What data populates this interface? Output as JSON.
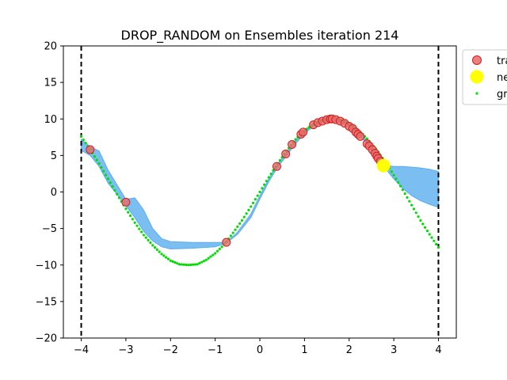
{
  "chart_data": {
    "type": "line",
    "title": "DROP_RANDOM on Ensembles iteration 214",
    "xlabel": "",
    "ylabel": "",
    "xlim": [
      -4.4,
      4.4
    ],
    "ylim": [
      -20,
      20
    ],
    "xticks": [
      -4,
      -3,
      -2,
      -1,
      0,
      1,
      2,
      3,
      4
    ],
    "yticks": [
      -20,
      -15,
      -10,
      -5,
      0,
      5,
      10,
      15,
      20
    ],
    "grid": false,
    "legend": {
      "placement": "upper-right outside",
      "entries": [
        {
          "label": "tra",
          "marker": "circle",
          "color": "#e86a6a"
        },
        {
          "label": "ne",
          "marker": "circle",
          "color": "#ffff00"
        },
        {
          "label": "gr",
          "marker": "dotted-line",
          "color": "#00dd00"
        }
      ]
    },
    "vlines": [
      -4,
      4
    ],
    "series": [
      {
        "name": "training",
        "kind": "scatter",
        "color": "#e86a6a",
        "edge_color": "#d02020",
        "x": [
          -3.8,
          -3.0,
          -0.75,
          0.38,
          0.58,
          0.72,
          0.92,
          0.97,
          1.2,
          1.3,
          1.4,
          1.5,
          1.58,
          1.62,
          1.7,
          1.8,
          1.9,
          2.0,
          2.08,
          2.15,
          2.2,
          2.25,
          2.4,
          2.45,
          2.52,
          2.58,
          2.62,
          2.65,
          2.7
        ],
        "y": [
          5.8,
          -1.4,
          -6.9,
          3.5,
          5.2,
          6.5,
          7.9,
          8.2,
          9.2,
          9.5,
          9.7,
          9.9,
          10.0,
          10.0,
          9.9,
          9.7,
          9.4,
          9.0,
          8.7,
          8.2,
          7.9,
          7.6,
          6.6,
          6.3,
          5.8,
          5.3,
          4.9,
          4.6,
          4.2
        ]
      },
      {
        "name": "new",
        "kind": "scatter",
        "color": "#ffff00",
        "x": [
          2.77
        ],
        "y": [
          3.6
        ]
      },
      {
        "name": "ground truth",
        "kind": "dotted-line",
        "color": "#00dd00",
        "x": [
          -4.0,
          -3.8,
          -3.6,
          -3.4,
          -3.2,
          -3.0,
          -2.8,
          -2.6,
          -2.4,
          -2.2,
          -2.0,
          -1.8,
          -1.6,
          -1.4,
          -1.2,
          -1.0,
          -0.8,
          -0.6,
          -0.4,
          -0.2,
          0.0,
          0.2,
          0.4,
          0.6,
          0.8,
          1.0,
          1.2,
          1.4,
          1.6,
          1.8,
          2.0,
          2.2,
          2.4,
          2.6,
          2.8,
          3.0,
          3.2,
          3.4,
          3.6,
          3.8,
          4.0
        ],
        "y": [
          7.6,
          5.8,
          3.9,
          1.8,
          -0.3,
          -2.3,
          -4.2,
          -5.9,
          -7.3,
          -8.5,
          -9.4,
          -9.9,
          -10.0,
          -9.9,
          -9.3,
          -8.4,
          -7.2,
          -5.6,
          -3.9,
          -2.0,
          0.0,
          2.0,
          3.9,
          5.6,
          7.2,
          8.4,
          9.3,
          9.9,
          10.0,
          9.9,
          9.4,
          8.5,
          7.3,
          5.9,
          4.2,
          2.3,
          0.3,
          -1.8,
          -3.9,
          -5.8,
          -7.6
        ]
      }
    ],
    "band": {
      "color": "#5aaeee",
      "x": [
        -4.0,
        -3.8,
        -3.6,
        -3.4,
        -3.2,
        -3.0,
        -2.8,
        -2.6,
        -2.4,
        -2.2,
        -2.0,
        -1.5,
        -1.0,
        -0.75,
        -0.5,
        -0.2,
        0.0,
        0.2,
        0.38,
        0.6,
        0.8,
        1.0,
        1.2,
        1.4,
        1.6,
        1.8,
        2.0,
        2.2,
        2.4,
        2.6,
        2.77,
        3.0,
        3.2,
        3.4,
        3.6,
        3.8,
        4.0
      ],
      "upper": [
        7.2,
        6.2,
        5.6,
        3.0,
        1.0,
        -1.0,
        -0.8,
        -2.5,
        -5.0,
        -6.4,
        -6.8,
        -6.9,
        -6.9,
        -6.9,
        -5.5,
        -3.0,
        -0.5,
        1.8,
        3.7,
        5.4,
        7.0,
        8.3,
        9.3,
        9.9,
        10.1,
        9.9,
        9.4,
        8.4,
        7.0,
        5.4,
        3.7,
        3.5,
        3.5,
        3.4,
        3.3,
        3.1,
        2.8
      ],
      "lower": [
        5.7,
        5.0,
        3.5,
        1.2,
        -0.3,
        -1.9,
        -3.5,
        -5.4,
        -6.7,
        -7.5,
        -7.8,
        -7.7,
        -7.5,
        -7.0,
        -5.8,
        -3.5,
        -1.0,
        1.4,
        3.2,
        5.0,
        6.6,
        8.0,
        9.0,
        9.6,
        9.8,
        9.6,
        9.1,
        8.0,
        6.6,
        5.0,
        3.5,
        1.8,
        0.5,
        -0.5,
        -1.2,
        -1.7,
        -2.1
      ]
    }
  }
}
